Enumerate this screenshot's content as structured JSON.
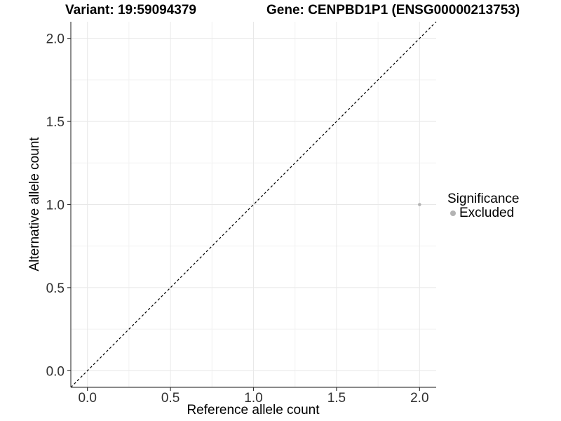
{
  "chart_data": {
    "type": "scatter",
    "title_variant": "Variant: 19:59094379",
    "title_gene": "Gene: CENPBD1P1 (ENSG00000213753)",
    "xlabel": "Reference allele count",
    "ylabel": "Alternative allele count",
    "xlim": [
      -0.1,
      2.1
    ],
    "ylim": [
      -0.1,
      2.1
    ],
    "xticks": {
      "values": [
        0,
        0.5,
        1,
        1.5,
        2
      ],
      "labels": [
        "0.0",
        "0.5",
        "1.0",
        "1.5",
        "2.0"
      ]
    },
    "yticks": {
      "values": [
        0,
        0.5,
        1,
        1.5,
        2
      ],
      "labels": [
        "0.0",
        "0.5",
        "1.0",
        "1.5",
        "2.0"
      ]
    },
    "minor_ticks": [
      0.25,
      0.75,
      1.25,
      1.75
    ],
    "grid": true,
    "reference_line": {
      "type": "identity",
      "slope": 1,
      "intercept": 0,
      "style": "dashed",
      "color": "#000000"
    },
    "series": [
      {
        "name": "Excluded",
        "color": "#b3b3b3",
        "points": [
          {
            "x": 2,
            "y": 1
          }
        ]
      }
    ],
    "legend": {
      "title": "Significance",
      "position": "right",
      "items": [
        {
          "label": "Excluded",
          "color": "#b3b3b3",
          "marker": "circle"
        }
      ]
    }
  },
  "colors": {
    "background": "#ffffff",
    "grid_major": "#e8e8e8",
    "grid_minor": "#f2f2f2",
    "axis_line": "#444444",
    "tick_mark": "#333333",
    "tick_label": "#303030",
    "reference_line": "#000000"
  }
}
